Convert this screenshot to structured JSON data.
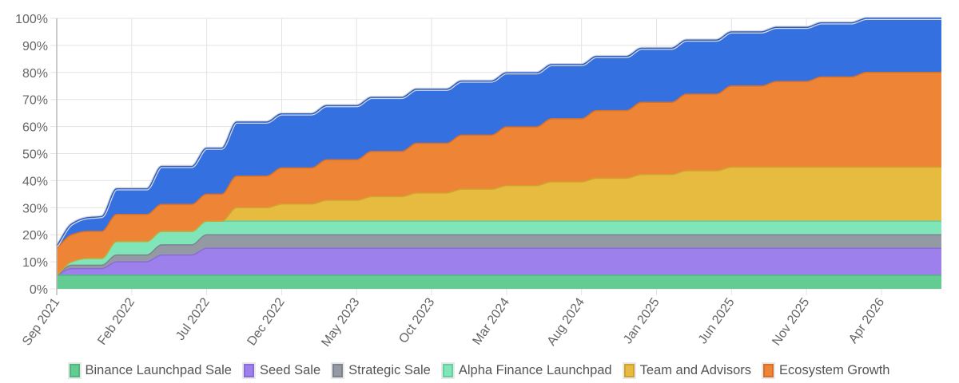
{
  "chart_data": {
    "type": "area",
    "stacked": true,
    "title": "",
    "xlabel": "",
    "ylabel": "",
    "ylim": [
      0,
      100
    ],
    "y_ticks": [
      "0%",
      "10%",
      "20%",
      "30%",
      "40%",
      "50%",
      "60%",
      "70%",
      "80%",
      "90%",
      "100%"
    ],
    "grid": true,
    "legend_position": "bottom",
    "x_tick_every": 5,
    "x": [
      "Sep 2021",
      "Oct 2021",
      "Nov 2021",
      "Dec 2021",
      "Jan 2022",
      "Feb 2022",
      "Mar 2022",
      "Apr 2022",
      "May 2022",
      "Jun 2022",
      "Jul 2022",
      "Aug 2022",
      "Sep 2022",
      "Oct 2022",
      "Nov 2022",
      "Dec 2022",
      "Jan 2023",
      "Feb 2023",
      "Mar 2023",
      "Apr 2023",
      "May 2023",
      "Jun 2023",
      "Jul 2023",
      "Aug 2023",
      "Sep 2023",
      "Oct 2023",
      "Nov 2023",
      "Dec 2023",
      "Jan 2024",
      "Feb 2024",
      "Mar 2024",
      "Apr 2024",
      "May 2024",
      "Jun 2024",
      "Jul 2024",
      "Aug 2024",
      "Sep 2024",
      "Oct 2024",
      "Nov 2024",
      "Dec 2024",
      "Jan 2025",
      "Feb 2025",
      "Mar 2025",
      "Apr 2025",
      "May 2025",
      "Jun 2025",
      "Jul 2025",
      "Aug 2025",
      "Sep 2025",
      "Oct 2025",
      "Nov 2025",
      "Dec 2025",
      "Jan 2026",
      "Feb 2026",
      "Mar 2026",
      "Apr 2026",
      "May 2026",
      "Jun 2026",
      "Jul 2026",
      "Aug 2026"
    ],
    "series": [
      {
        "name": "Binance Launchpad Sale",
        "color": "#63cc92",
        "stroke": "#4fb87e",
        "values": [
          5,
          5,
          5,
          5,
          5,
          5,
          5,
          5,
          5,
          5,
          5,
          5,
          5,
          5,
          5,
          5,
          5,
          5,
          5,
          5,
          5,
          5,
          5,
          5,
          5,
          5,
          5,
          5,
          5,
          5,
          5,
          5,
          5,
          5,
          5,
          5,
          5,
          5,
          5,
          5,
          5,
          5,
          5,
          5,
          5,
          5,
          5,
          5,
          5,
          5,
          5,
          5,
          5,
          5,
          5,
          5,
          5,
          5,
          5,
          5
        ]
      },
      {
        "name": "Seed Sale",
        "color": "#9d80ec",
        "stroke": "#8a6bd8",
        "values": [
          0,
          2.5,
          2.5,
          2.5,
          5,
          5,
          5,
          7.5,
          7.5,
          7.5,
          10,
          10,
          10,
          10,
          10,
          10,
          10,
          10,
          10,
          10,
          10,
          10,
          10,
          10,
          10,
          10,
          10,
          10,
          10,
          10,
          10,
          10,
          10,
          10,
          10,
          10,
          10,
          10,
          10,
          10,
          10,
          10,
          10,
          10,
          10,
          10,
          10,
          10,
          10,
          10,
          10,
          10,
          10,
          10,
          10,
          10,
          10,
          10,
          10,
          10
        ]
      },
      {
        "name": "Strategic Sale",
        "color": "#939aa3",
        "stroke": "#7d848d",
        "values": [
          0,
          1.25,
          1.25,
          1.25,
          2.5,
          2.5,
          2.5,
          3.75,
          3.75,
          3.75,
          5,
          5,
          5,
          5,
          5,
          5,
          5,
          5,
          5,
          5,
          5,
          5,
          5,
          5,
          5,
          5,
          5,
          5,
          5,
          5,
          5,
          5,
          5,
          5,
          5,
          5,
          5,
          5,
          5,
          5,
          5,
          5,
          5,
          5,
          5,
          5,
          5,
          5,
          5,
          5,
          5,
          5,
          5,
          5,
          5,
          5,
          5,
          5,
          5,
          5
        ]
      },
      {
        "name": "Alpha Finance Launchpad",
        "color": "#80e5b8",
        "stroke": "#64cf9f",
        "values": [
          0,
          1.25,
          2.5,
          2.5,
          5,
          5,
          5,
          5,
          5,
          5,
          5,
          5,
          5,
          5,
          5,
          5,
          5,
          5,
          5,
          5,
          5,
          5,
          5,
          5,
          5,
          5,
          5,
          5,
          5,
          5,
          5,
          5,
          5,
          5,
          5,
          5,
          5,
          5,
          5,
          5,
          5,
          5,
          5,
          5,
          5,
          5,
          5,
          5,
          5,
          5,
          5,
          5,
          5,
          5,
          5,
          5,
          5,
          5,
          5,
          5
        ]
      },
      {
        "name": "Team and Advisors",
        "color": "#e6bb40",
        "stroke": "#cfa42e",
        "values": [
          0,
          0,
          0,
          0,
          0,
          0,
          0,
          0,
          0,
          0,
          0,
          0,
          5,
          5,
          5,
          6.36,
          6.36,
          6.36,
          7.73,
          7.73,
          7.73,
          9.09,
          9.09,
          9.09,
          10.45,
          10.45,
          10.45,
          11.82,
          11.82,
          11.82,
          13.18,
          13.18,
          13.18,
          14.55,
          14.55,
          14.55,
          15.91,
          15.91,
          15.91,
          17.27,
          17.27,
          17.27,
          18.64,
          18.64,
          18.64,
          20,
          20,
          20,
          20,
          20,
          20,
          20,
          20,
          20,
          20,
          20,
          20,
          20,
          20,
          20
        ]
      },
      {
        "name": "Ecosystem Growth",
        "color": "#ee8435",
        "stroke": "#d8702a",
        "values": [
          10,
          10,
          10,
          10,
          10,
          10,
          10,
          10,
          10,
          10,
          10,
          10,
          11.67,
          11.67,
          11.67,
          13.33,
          13.33,
          13.33,
          15,
          15,
          15,
          16.67,
          16.67,
          16.67,
          18.33,
          18.33,
          18.33,
          20,
          20,
          20,
          21.67,
          21.67,
          21.67,
          23.33,
          23.33,
          23.33,
          25,
          25,
          25,
          26.67,
          26.67,
          26.67,
          28.33,
          28.33,
          28.33,
          30,
          30,
          30,
          31.67,
          31.67,
          31.67,
          33.33,
          33.33,
          33.33,
          35,
          35,
          35,
          35,
          35,
          35
        ]
      },
      {
        "color": "#3470e0",
        "stroke": "#2a5fc7",
        "values": [
          0.8,
          4,
          5,
          5.5,
          9.5,
          9.5,
          9.5,
          14,
          14,
          14,
          17,
          17,
          20,
          20,
          20,
          20,
          20,
          20,
          20,
          20,
          20,
          20,
          20,
          20,
          20,
          20,
          20,
          20,
          20,
          20,
          20,
          20,
          20,
          20,
          20,
          20,
          20,
          20,
          20,
          20,
          20,
          20,
          20,
          20,
          20,
          20,
          20,
          20,
          20,
          20,
          20,
          20,
          20,
          20,
          20,
          20,
          20,
          20,
          20,
          20
        ]
      }
    ]
  }
}
